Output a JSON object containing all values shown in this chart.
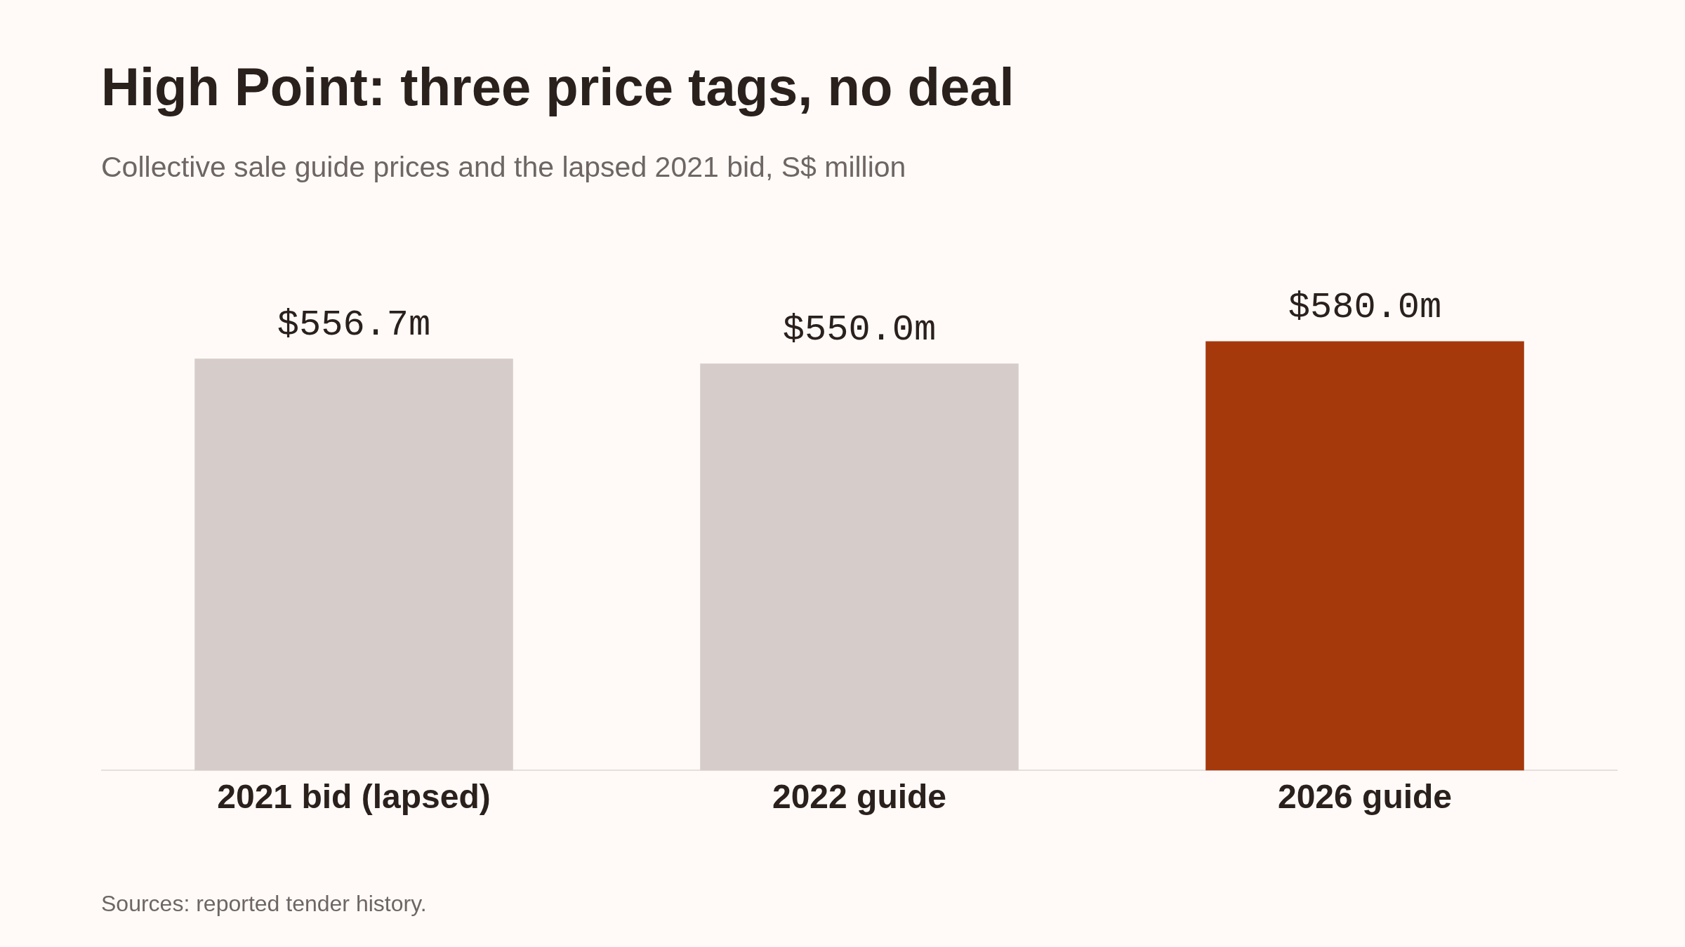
{
  "chart_data": {
    "type": "bar",
    "title": "High Point: three price tags, no deal",
    "subtitle": "Collective sale guide prices and the lapsed 2021 bid, S$ million",
    "categories": [
      "2021 bid (lapsed)",
      "2022 guide",
      "2026 guide"
    ],
    "values": [
      556.7,
      550.0,
      580.0
    ],
    "colors": [
      "#d6cdca",
      "#d6cdca",
      "#a5390c"
    ],
    "value_labels": [
      "$556.7m",
      "$550.0m",
      "$580.0m"
    ],
    "tick_labels": "x",
    "annotations": [
      "Sources: reported tender history."
    ]
  }
}
